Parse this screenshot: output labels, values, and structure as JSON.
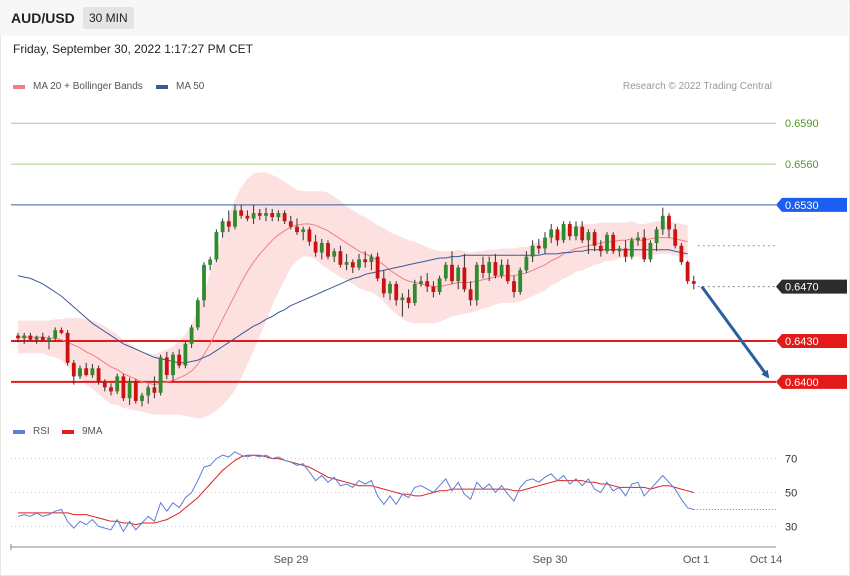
{
  "header": {
    "pair": "AUD/USD",
    "timeframe": "30 MIN"
  },
  "date_line": "Friday, September 30, 2022 1:17:27 PM CET",
  "credit": "Research © 2022 Trading Central",
  "legend_main": [
    {
      "label": "MA 20 + Bollinger Bands",
      "color": "#f08080"
    },
    {
      "label": "MA 50",
      "color": "#3a5a9a"
    }
  ],
  "legend_rsi": [
    {
      "label": "RSI",
      "color": "#5b7fd6"
    },
    {
      "label": "9MA",
      "color": "#e02020"
    }
  ],
  "chart_data": {
    "type": "candlestick",
    "symbol": "AUD/USD",
    "interval": "30 MIN",
    "ylim": [
      0.6372,
      0.661
    ],
    "x_labels": [
      "Sep 29",
      "Sep 30",
      "Oct 1",
      "Oct 14"
    ],
    "candles": [
      [
        0.6434,
        0.6436,
        0.6429,
        0.6432
      ],
      [
        0.6432,
        0.6436,
        0.6428,
        0.6434
      ],
      [
        0.6434,
        0.6436,
        0.643,
        0.6431
      ],
      [
        0.6431,
        0.6434,
        0.6428,
        0.6433
      ],
      [
        0.6433,
        0.6436,
        0.643,
        0.643
      ],
      [
        0.643,
        0.6434,
        0.6424,
        0.6432
      ],
      [
        0.6432,
        0.644,
        0.643,
        0.6438
      ],
      [
        0.6438,
        0.644,
        0.6435,
        0.6436
      ],
      [
        0.6436,
        0.6438,
        0.6412,
        0.6414
      ],
      [
        0.6414,
        0.6416,
        0.6398,
        0.6404
      ],
      [
        0.6404,
        0.6412,
        0.6402,
        0.641
      ],
      [
        0.641,
        0.6414,
        0.6404,
        0.6405
      ],
      [
        0.6405,
        0.6413,
        0.6403,
        0.641
      ],
      [
        0.641,
        0.6412,
        0.6398,
        0.64
      ],
      [
        0.64,
        0.6402,
        0.6393,
        0.6396
      ],
      [
        0.6396,
        0.6399,
        0.639,
        0.6393
      ],
      [
        0.6393,
        0.6406,
        0.6391,
        0.6404
      ],
      [
        0.6404,
        0.6406,
        0.6386,
        0.6388
      ],
      [
        0.6388,
        0.6403,
        0.6383,
        0.64
      ],
      [
        0.64,
        0.6402,
        0.6384,
        0.6386
      ],
      [
        0.6386,
        0.6392,
        0.6382,
        0.639
      ],
      [
        0.639,
        0.6398,
        0.6384,
        0.6396
      ],
      [
        0.6396,
        0.6404,
        0.6388,
        0.6392
      ],
      [
        0.6392,
        0.642,
        0.639,
        0.6418
      ],
      [
        0.6418,
        0.6422,
        0.6402,
        0.6405
      ],
      [
        0.6405,
        0.6422,
        0.64,
        0.642
      ],
      [
        0.642,
        0.6424,
        0.641,
        0.6412
      ],
      [
        0.6412,
        0.643,
        0.641,
        0.6428
      ],
      [
        0.6428,
        0.6442,
        0.6425,
        0.644
      ],
      [
        0.644,
        0.6462,
        0.6438,
        0.646
      ],
      [
        0.646,
        0.6488,
        0.6455,
        0.6486
      ],
      [
        0.6486,
        0.6492,
        0.6482,
        0.649
      ],
      [
        0.649,
        0.6512,
        0.6488,
        0.651
      ],
      [
        0.651,
        0.652,
        0.6506,
        0.6518
      ],
      [
        0.6518,
        0.6526,
        0.651,
        0.6514
      ],
      [
        0.6514,
        0.653,
        0.6512,
        0.6526
      ],
      [
        0.6526,
        0.653,
        0.652,
        0.6522
      ],
      [
        0.6522,
        0.6526,
        0.6518,
        0.652
      ],
      [
        0.652,
        0.653,
        0.6516,
        0.6524
      ],
      [
        0.6524,
        0.6527,
        0.6519,
        0.6522
      ],
      [
        0.6522,
        0.6528,
        0.6518,
        0.6524
      ],
      [
        0.6524,
        0.6527,
        0.6518,
        0.6521
      ],
      [
        0.6521,
        0.6526,
        0.6518,
        0.6524
      ],
      [
        0.6524,
        0.6526,
        0.6516,
        0.6518
      ],
      [
        0.6518,
        0.6522,
        0.6512,
        0.6514
      ],
      [
        0.6514,
        0.652,
        0.6508,
        0.651
      ],
      [
        0.651,
        0.6514,
        0.6504,
        0.6512
      ],
      [
        0.6512,
        0.6514,
        0.65,
        0.6503
      ],
      [
        0.6503,
        0.6508,
        0.6492,
        0.6495
      ],
      [
        0.6495,
        0.6505,
        0.649,
        0.6502
      ],
      [
        0.6502,
        0.6504,
        0.649,
        0.6492
      ],
      [
        0.6492,
        0.6498,
        0.6488,
        0.6496
      ],
      [
        0.6496,
        0.65,
        0.6484,
        0.6486
      ],
      [
        0.6486,
        0.6494,
        0.6482,
        0.6488
      ],
      [
        0.6488,
        0.649,
        0.648,
        0.6484
      ],
      [
        0.6484,
        0.6494,
        0.6482,
        0.649
      ],
      [
        0.649,
        0.6496,
        0.6484,
        0.6488
      ],
      [
        0.6488,
        0.6494,
        0.6482,
        0.6492
      ],
      [
        0.6492,
        0.6495,
        0.6474,
        0.6476
      ],
      [
        0.6476,
        0.6482,
        0.6462,
        0.6465
      ],
      [
        0.6465,
        0.6474,
        0.646,
        0.6472
      ],
      [
        0.6472,
        0.6474,
        0.6456,
        0.646
      ],
      [
        0.646,
        0.6465,
        0.6448,
        0.6462
      ],
      [
        0.6462,
        0.6468,
        0.6454,
        0.6458
      ],
      [
        0.6458,
        0.6475,
        0.6456,
        0.6472
      ],
      [
        0.6472,
        0.6478,
        0.647,
        0.6474
      ],
      [
        0.6474,
        0.648,
        0.6466,
        0.647
      ],
      [
        0.647,
        0.6474,
        0.6462,
        0.6466
      ],
      [
        0.6466,
        0.6478,
        0.6464,
        0.6476
      ],
      [
        0.6476,
        0.6488,
        0.6474,
        0.6486
      ],
      [
        0.6486,
        0.6496,
        0.6472,
        0.6474
      ],
      [
        0.6474,
        0.6486,
        0.6468,
        0.6484
      ],
      [
        0.6484,
        0.6494,
        0.6466,
        0.6468
      ],
      [
        0.6468,
        0.6474,
        0.6456,
        0.646
      ],
      [
        0.646,
        0.6488,
        0.6456,
        0.6486
      ],
      [
        0.6486,
        0.6492,
        0.6476,
        0.648
      ],
      [
        0.648,
        0.6492,
        0.6474,
        0.6488
      ],
      [
        0.6488,
        0.6494,
        0.6476,
        0.6478
      ],
      [
        0.6478,
        0.649,
        0.6476,
        0.6486
      ],
      [
        0.6486,
        0.649,
        0.6472,
        0.6474
      ],
      [
        0.6474,
        0.6478,
        0.6462,
        0.6466
      ],
      [
        0.6466,
        0.6484,
        0.6464,
        0.6482
      ],
      [
        0.6482,
        0.6496,
        0.648,
        0.6492
      ],
      [
        0.6492,
        0.6504,
        0.6488,
        0.65
      ],
      [
        0.65,
        0.6505,
        0.6494,
        0.6498
      ],
      [
        0.6498,
        0.651,
        0.6494,
        0.6506
      ],
      [
        0.6506,
        0.6516,
        0.6502,
        0.6512
      ],
      [
        0.6512,
        0.6514,
        0.65,
        0.6504
      ],
      [
        0.6504,
        0.6518,
        0.6502,
        0.6516
      ],
      [
        0.6516,
        0.6518,
        0.6504,
        0.6507
      ],
      [
        0.6507,
        0.6518,
        0.6504,
        0.6514
      ],
      [
        0.6514,
        0.6518,
        0.6502,
        0.6504
      ],
      [
        0.6504,
        0.6512,
        0.6494,
        0.651
      ],
      [
        0.651,
        0.6512,
        0.6496,
        0.65
      ],
      [
        0.65,
        0.6504,
        0.6492,
        0.6496
      ],
      [
        0.6496,
        0.651,
        0.6494,
        0.6508
      ],
      [
        0.6508,
        0.651,
        0.6494,
        0.6496
      ],
      [
        0.6496,
        0.65,
        0.6492,
        0.6498
      ],
      [
        0.6498,
        0.6504,
        0.6488,
        0.6492
      ],
      [
        0.6492,
        0.6506,
        0.649,
        0.6504
      ],
      [
        0.6504,
        0.651,
        0.65,
        0.6506
      ],
      [
        0.6506,
        0.6512,
        0.6488,
        0.649
      ],
      [
        0.649,
        0.6504,
        0.6488,
        0.6502
      ],
      [
        0.6502,
        0.6514,
        0.6496,
        0.6512
      ],
      [
        0.6512,
        0.6528,
        0.6508,
        0.6522
      ],
      [
        0.6522,
        0.6524,
        0.6506,
        0.6512
      ],
      [
        0.6512,
        0.6516,
        0.6498,
        0.65
      ],
      [
        0.65,
        0.6502,
        0.6486,
        0.6488
      ],
      [
        0.6488,
        0.6489,
        0.6472,
        0.6474
      ],
      [
        0.6474,
        0.6478,
        0.6468,
        0.6472
      ]
    ],
    "ma20": [
      0.6433,
      0.6433,
      0.6433,
      0.6433,
      0.6433,
      0.6432,
      0.6432,
      0.6431,
      0.6429,
      0.6427,
      0.6425,
      0.6422,
      0.642,
      0.6417,
      0.6414,
      0.6411,
      0.6409,
      0.6406,
      0.6404,
      0.6402,
      0.64,
      0.6399,
      0.6398,
      0.6399,
      0.64,
      0.6401,
      0.6403,
      0.6405,
      0.6408,
      0.6413,
      0.642,
      0.6428,
      0.6437,
      0.6446,
      0.6455,
      0.6464,
      0.6473,
      0.6481,
      0.6488,
      0.6494,
      0.6499,
      0.6504,
      0.6508,
      0.6511,
      0.6514,
      0.6515,
      0.6516,
      0.6516,
      0.6515,
      0.6513,
      0.6511,
      0.6508,
      0.6505,
      0.6502,
      0.6499,
      0.6496,
      0.6494,
      0.6492,
      0.6489,
      0.6486,
      0.6482,
      0.6479,
      0.6476,
      0.6474,
      0.6473,
      0.6472,
      0.6471,
      0.647,
      0.647,
      0.6471,
      0.6472,
      0.6473,
      0.6473,
      0.6473,
      0.6474,
      0.6475,
      0.6476,
      0.6477,
      0.6478,
      0.6478,
      0.6478,
      0.6479,
      0.648,
      0.6482,
      0.6484,
      0.6486,
      0.6489,
      0.6491,
      0.6494,
      0.6496,
      0.6498,
      0.6499,
      0.65,
      0.6501,
      0.6502,
      0.6503,
      0.6503,
      0.6504,
      0.6504,
      0.6505,
      0.6504,
      0.6504,
      0.6505,
      0.6506,
      0.6506,
      0.6506,
      0.6505,
      0.6504,
      0.6503
    ],
    "ma50": [
      0.6478,
      0.6477,
      0.6476,
      0.6474,
      0.6472,
      0.6469,
      0.6466,
      0.6463,
      0.6459,
      0.6455,
      0.6451,
      0.6447,
      0.6443,
      0.644,
      0.6437,
      0.6434,
      0.6431,
      0.6428,
      0.6426,
      0.6424,
      0.6422,
      0.642,
      0.6418,
      0.6417,
      0.6416,
      0.6415,
      0.6414,
      0.6414,
      0.6415,
      0.6416,
      0.6418,
      0.642,
      0.6423,
      0.6426,
      0.6429,
      0.6432,
      0.6435,
      0.6438,
      0.6441,
      0.6443,
      0.6446,
      0.6448,
      0.6451,
      0.6453,
      0.6456,
      0.6458,
      0.646,
      0.6462,
      0.6464,
      0.6466,
      0.6468,
      0.647,
      0.6472,
      0.6474,
      0.6476,
      0.6477,
      0.6479,
      0.648,
      0.6481,
      0.6482,
      0.6483,
      0.6484,
      0.6485,
      0.6486,
      0.6487,
      0.6488,
      0.6489,
      0.649,
      0.6491,
      0.6491,
      0.6492,
      0.6492,
      0.6493,
      0.6493,
      0.6493,
      0.6493,
      0.6493,
      0.6493,
      0.6493,
      0.6493,
      0.6493,
      0.6493,
      0.6493,
      0.6493,
      0.6493,
      0.6494,
      0.6494,
      0.6494,
      0.6495,
      0.6495,
      0.6496,
      0.6496,
      0.6497,
      0.6497,
      0.6497,
      0.6497,
      0.6497,
      0.6497,
      0.6497,
      0.6497,
      0.6497,
      0.6497,
      0.6497,
      0.6497,
      0.6497,
      0.6497,
      0.6496,
      0.6495,
      0.6494
    ],
    "bb_width": [
      0.0012,
      0.0012,
      0.0012,
      0.0012,
      0.0012,
      0.0013,
      0.0014,
      0.0015,
      0.0018,
      0.002,
      0.0022,
      0.0024,
      0.0025,
      0.0026,
      0.0027,
      0.0027,
      0.0026,
      0.0025,
      0.0024,
      0.0023,
      0.0022,
      0.0022,
      0.0022,
      0.0023,
      0.0024,
      0.0025,
      0.0027,
      0.003,
      0.0034,
      0.004,
      0.0046,
      0.0052,
      0.0058,
      0.0063,
      0.0067,
      0.007,
      0.007,
      0.0068,
      0.0065,
      0.006,
      0.0055,
      0.0048,
      0.0042,
      0.0036,
      0.003,
      0.0026,
      0.0024,
      0.0024,
      0.0025,
      0.0027,
      0.0028,
      0.0028,
      0.0028,
      0.0027,
      0.0027,
      0.0027,
      0.0027,
      0.0026,
      0.0026,
      0.0027,
      0.0028,
      0.0029,
      0.003,
      0.003,
      0.003,
      0.0029,
      0.0028,
      0.0027,
      0.0026,
      0.0025,
      0.0024,
      0.0024,
      0.0023,
      0.0022,
      0.0022,
      0.0021,
      0.0021,
      0.002,
      0.002,
      0.002,
      0.002,
      0.002,
      0.0019,
      0.0019,
      0.0019,
      0.0019,
      0.0018,
      0.0018,
      0.0018,
      0.0018,
      0.0017,
      0.0017,
      0.0016,
      0.0015,
      0.0015,
      0.0014,
      0.0014,
      0.0013,
      0.0013,
      0.0013,
      0.0012,
      0.0012,
      0.0012,
      0.0012,
      0.0012,
      0.0012,
      0.0012,
      0.0012,
      0.0012
    ],
    "rsi_ylim": [
      22,
      78
    ],
    "rsi_ticks": [
      "70",
      "50",
      "30"
    ],
    "rsi": [
      36,
      37,
      36,
      38,
      36,
      37,
      39,
      40,
      33,
      29,
      33,
      31,
      34,
      30,
      29,
      28,
      34,
      27,
      33,
      28,
      32,
      36,
      33,
      44,
      39,
      44,
      41,
      47,
      50,
      57,
      65,
      66,
      70,
      72,
      71,
      74,
      72,
      71,
      72,
      71,
      72,
      70,
      71,
      69,
      68,
      66,
      67,
      62,
      57,
      60,
      56,
      59,
      54,
      55,
      53,
      57,
      55,
      57,
      48,
      43,
      48,
      43,
      49,
      47,
      53,
      54,
      52,
      50,
      54,
      58,
      51,
      56,
      49,
      46,
      56,
      52,
      55,
      50,
      54,
      49,
      45,
      53,
      57,
      58,
      56,
      59,
      61,
      57,
      60,
      55,
      58,
      54,
      58,
      52,
      50,
      56,
      51,
      53,
      48,
      55,
      56,
      48,
      52,
      56,
      60,
      56,
      52,
      46,
      41,
      40
    ],
    "rsi_ma": [
      38,
      38,
      38,
      38,
      38,
      38,
      38,
      38,
      38,
      37,
      37,
      37,
      36,
      35,
      34,
      33,
      33,
      32,
      32,
      31,
      32,
      32,
      32,
      33,
      34,
      36,
      38,
      41,
      44,
      47,
      51,
      55,
      59,
      63,
      66,
      69,
      71,
      72,
      72,
      72,
      71,
      70,
      70,
      69,
      68,
      67,
      66,
      65,
      63,
      61,
      59,
      58,
      57,
      56,
      55,
      54,
      54,
      54,
      53,
      52,
      51,
      50,
      49,
      49,
      48,
      48,
      49,
      50,
      51,
      51,
      52,
      52,
      52,
      52,
      52,
      52,
      52,
      52,
      52,
      52,
      51,
      51,
      52,
      53,
      54,
      55,
      56,
      57,
      57,
      57,
      57,
      57,
      56,
      56,
      55,
      55,
      54,
      53,
      53,
      53,
      53,
      53,
      52,
      53,
      54,
      54,
      53,
      52,
      51,
      50
    ],
    "horizontal_levels": [
      {
        "value": "0.6590",
        "level": 0.659,
        "kind": "resistance",
        "color": "#a9cf8a",
        "label_color": "#4c9a1e",
        "label_bg": ""
      },
      {
        "value": "0.6560",
        "level": 0.656,
        "kind": "resistance",
        "color": "#a9cf8a",
        "label_color": "#4c9a1e",
        "label_bg": ""
      },
      {
        "value": "0.6530",
        "level": 0.653,
        "kind": "pivot",
        "color": "#2b5f9e",
        "label_color": "#ffffff",
        "label_bg": "#1a5ff0"
      },
      {
        "value": "0.6470",
        "level": 0.647,
        "kind": "last",
        "color": "#888888",
        "label_color": "#ffffff",
        "label_bg": "#2c2c2c"
      },
      {
        "value": "0.6430",
        "level": 0.643,
        "kind": "target",
        "color": "#e41a1a",
        "label_color": "#ffffff",
        "label_bg": "#e41a1a"
      },
      {
        "value": "0.6400",
        "level": 0.64,
        "kind": "target",
        "color": "#e41a1a",
        "label_color": "#ffffff",
        "label_bg": "#e41a1a"
      }
    ],
    "forecast_arrow": {
      "from": 0.647,
      "to": 0.64,
      "color": "#2b5f9e"
    },
    "colors": {
      "up": "#2e8b2e",
      "down": "#cc1111",
      "band": "#fde0e0",
      "ma20": "#f08080",
      "ma50": "#3a5a9a"
    }
  }
}
